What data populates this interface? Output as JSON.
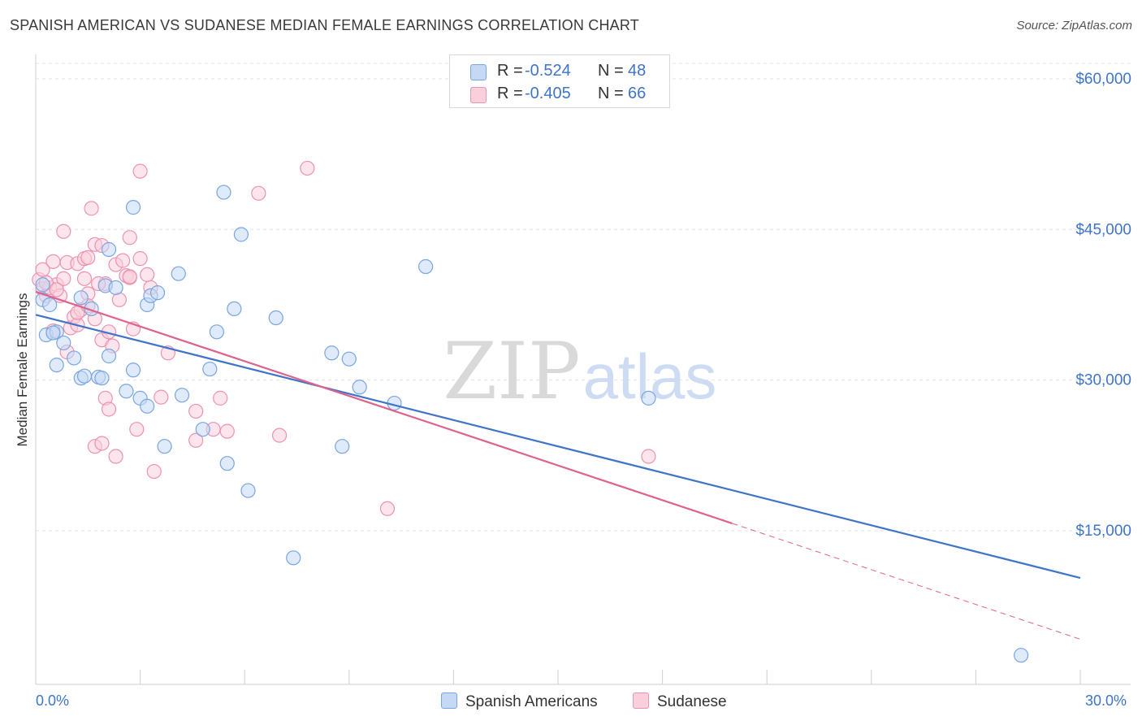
{
  "title": "SPANISH AMERICAN VS SUDANESE MEDIAN FEMALE EARNINGS CORRELATION CHART",
  "source": "Source: ZipAtlas.com",
  "watermark": {
    "zip": "ZIP",
    "atlas": "atlas"
  },
  "legend_top": {
    "rows": [
      {
        "r_label": "R =",
        "r_value": "-0.524",
        "n_label": "N =",
        "n_value": "48"
      },
      {
        "r_label": "R =",
        "r_value": "-0.405",
        "n_label": "N =",
        "n_value": "66"
      }
    ]
  },
  "legend_bottom": [
    "Spanish Americans",
    "Sudanese"
  ],
  "x_axis": {
    "min_label": "0.0%",
    "max_label": "30.0%"
  },
  "y_axis_title": "Median Female Earnings",
  "colors": {
    "blue": "#3f74c9",
    "pink": "#e0628c",
    "blue_fill": "#c5d9f5",
    "pink_fill": "#f9cfdc"
  },
  "chart_data": {
    "type": "scatter",
    "title": "SPANISH AMERICAN VS SUDANESE MEDIAN FEMALE EARNINGS CORRELATION CHART",
    "xlabel": "",
    "ylabel": "Median Female Earnings",
    "xlim": [
      0,
      30
    ],
    "ylim": [
      0,
      62000
    ],
    "y_ticks": [
      15000,
      30000,
      45000,
      60000
    ],
    "y_tick_labels": [
      "$15,000",
      "$30,000",
      "$45,000",
      "$60,000"
    ],
    "x_tick_labels": [
      "0.0%",
      "30.0%"
    ],
    "series": [
      {
        "name": "Spanish Americans",
        "color": "#3f74c9",
        "R": -0.524,
        "N": 48,
        "trend": {
          "x0": 0,
          "y0": 36500,
          "x1": 30,
          "y1": 10300,
          "solid_until": 30
        },
        "points": [
          [
            0.2,
            38000
          ],
          [
            0.4,
            37500
          ],
          [
            0.3,
            34500
          ],
          [
            0.6,
            34800
          ],
          [
            0.8,
            33700
          ],
          [
            0.6,
            31500
          ],
          [
            1.1,
            32200
          ],
          [
            1.3,
            30200
          ],
          [
            1.4,
            30400
          ],
          [
            1.8,
            30300
          ],
          [
            1.9,
            30200
          ],
          [
            1.3,
            38200
          ],
          [
            1.6,
            37100
          ],
          [
            2.0,
            39400
          ],
          [
            2.3,
            39200
          ],
          [
            2.1,
            32400
          ],
          [
            2.6,
            28900
          ],
          [
            2.8,
            31000
          ],
          [
            3.0,
            28200
          ],
          [
            3.2,
            27400
          ],
          [
            3.2,
            37500
          ],
          [
            3.3,
            38400
          ],
          [
            3.5,
            38700
          ],
          [
            2.1,
            43000
          ],
          [
            2.8,
            47200
          ],
          [
            4.1,
            40600
          ],
          [
            3.7,
            23400
          ],
          [
            4.2,
            28500
          ],
          [
            4.8,
            25100
          ],
          [
            5.0,
            31100
          ],
          [
            5.2,
            34800
          ],
          [
            5.5,
            21700
          ],
          [
            5.4,
            48700
          ],
          [
            5.7,
            37100
          ],
          [
            5.9,
            44500
          ],
          [
            6.1,
            19000
          ],
          [
            6.9,
            36200
          ],
          [
            7.4,
            12300
          ],
          [
            8.5,
            32700
          ],
          [
            9.0,
            32100
          ],
          [
            8.8,
            23400
          ],
          [
            9.3,
            29300
          ],
          [
            10.3,
            27700
          ],
          [
            11.2,
            41300
          ],
          [
            17.6,
            28200
          ],
          [
            28.3,
            2600
          ],
          [
            0.2,
            39500
          ],
          [
            0.5,
            34700
          ]
        ]
      },
      {
        "name": "Sudanese",
        "color": "#e0628c",
        "R": -0.405,
        "N": 66,
        "trend": {
          "x0": 0,
          "y0": 38800,
          "x1": 30,
          "y1": 4200,
          "solid_until": 20.0
        },
        "points": [
          [
            0.1,
            40000
          ],
          [
            0.2,
            39100
          ],
          [
            0.3,
            38400
          ],
          [
            0.2,
            41000
          ],
          [
            0.4,
            39200
          ],
          [
            0.5,
            41800
          ],
          [
            0.6,
            39500
          ],
          [
            0.7,
            38400
          ],
          [
            0.8,
            40100
          ],
          [
            0.8,
            44800
          ],
          [
            0.9,
            41700
          ],
          [
            1.0,
            35200
          ],
          [
            0.9,
            32800
          ],
          [
            1.1,
            36300
          ],
          [
            1.2,
            35500
          ],
          [
            1.3,
            37000
          ],
          [
            1.2,
            41600
          ],
          [
            1.4,
            42100
          ],
          [
            1.4,
            40100
          ],
          [
            1.5,
            38600
          ],
          [
            1.5,
            42200
          ],
          [
            1.6,
            47100
          ],
          [
            1.7,
            43500
          ],
          [
            1.7,
            36100
          ],
          [
            1.9,
            43400
          ],
          [
            1.9,
            34000
          ],
          [
            2.0,
            39600
          ],
          [
            2.0,
            28200
          ],
          [
            2.1,
            27100
          ],
          [
            2.1,
            34800
          ],
          [
            2.2,
            33400
          ],
          [
            2.3,
            41500
          ],
          [
            2.4,
            38000
          ],
          [
            2.5,
            41900
          ],
          [
            2.6,
            40400
          ],
          [
            2.7,
            40200
          ],
          [
            2.7,
            44200
          ],
          [
            2.8,
            35100
          ],
          [
            2.9,
            25100
          ],
          [
            3.0,
            42100
          ],
          [
            3.0,
            50800
          ],
          [
            3.2,
            40500
          ],
          [
            3.3,
            39200
          ],
          [
            3.4,
            20900
          ],
          [
            3.6,
            28300
          ],
          [
            3.8,
            32700
          ],
          [
            4.6,
            24000
          ],
          [
            4.6,
            26900
          ],
          [
            5.1,
            25100
          ],
          [
            5.3,
            28200
          ],
          [
            5.5,
            24900
          ],
          [
            6.4,
            48600
          ],
          [
            7.0,
            24500
          ],
          [
            7.8,
            51100
          ],
          [
            10.1,
            17200
          ],
          [
            17.6,
            22400
          ],
          [
            1.7,
            23400
          ],
          [
            1.9,
            23700
          ],
          [
            2.3,
            22400
          ],
          [
            0.5,
            34900
          ],
          [
            0.3,
            39700
          ],
          [
            0.6,
            39000
          ],
          [
            1.2,
            36700
          ],
          [
            1.8,
            39600
          ],
          [
            2.7,
            40300
          ],
          [
            1.5,
            37400
          ]
        ]
      }
    ]
  }
}
